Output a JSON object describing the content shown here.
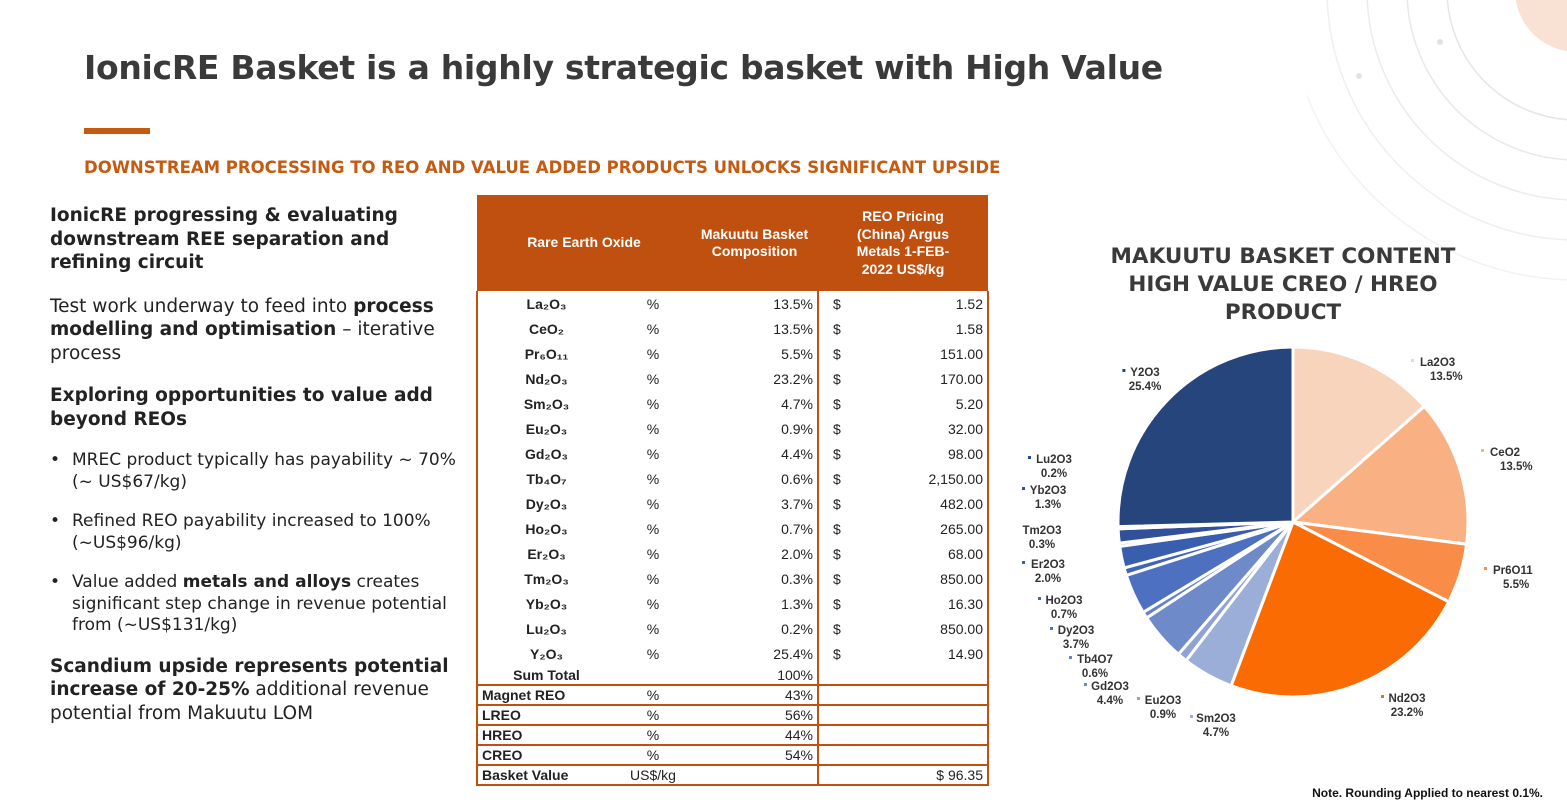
{
  "title": "IonicRE Basket is a highly strategic basket with High Value",
  "subtitle": "DOWNSTREAM PROCESSING TO REO AND VALUE ADDED PRODUCTS UNLOCKS SIGNIFICANT UPSIDE",
  "left": {
    "heading1": "IonicRE progressing & evaluating downstream REE separation and refining circuit",
    "para1_a": "Test work underway to feed into ",
    "para1_b": "process modelling and optimisation",
    "para1_c": " – iterative process",
    "heading2": "Exploring opportunities to value add beyond REOs",
    "bullet1": "MREC product typically has payability ~ 70% (~ US$67/kg)",
    "bullet2": "Refined REO payability increased to 100% (~US$96/kg)",
    "bullet3_a": "Value added ",
    "bullet3_b": "metals and alloys",
    "bullet3_c": " creates significant step change in revenue potential from (~US$131/kg)",
    "para2_a": "Scandium upside represents potential increase of 20-25%",
    "para2_b": " additional revenue potential from Makuutu LOM"
  },
  "table": {
    "headers": {
      "oxide": "Rare Earth Oxide",
      "composition": "Makuutu Basket Composition",
      "pricing": "REO Pricing (China) Argus Metals 1-FEB-2022 US$/kg"
    },
    "rows": [
      {
        "oxide": "La₂O₃",
        "unit": "%",
        "pct": "13.5%",
        "cur": "$",
        "price": "1.52"
      },
      {
        "oxide": "CeO₂",
        "unit": "%",
        "pct": "13.5%",
        "cur": "$",
        "price": "1.58"
      },
      {
        "oxide": "Pr₆O₁₁",
        "unit": "%",
        "pct": "5.5%",
        "cur": "$",
        "price": "151.00"
      },
      {
        "oxide": "Nd₂O₃",
        "unit": "%",
        "pct": "23.2%",
        "cur": "$",
        "price": "170.00"
      },
      {
        "oxide": "Sm₂O₃",
        "unit": "%",
        "pct": "4.7%",
        "cur": "$",
        "price": "5.20"
      },
      {
        "oxide": "Eu₂O₃",
        "unit": "%",
        "pct": "0.9%",
        "cur": "$",
        "price": "32.00"
      },
      {
        "oxide": "Gd₂O₃",
        "unit": "%",
        "pct": "4.4%",
        "cur": "$",
        "price": "98.00"
      },
      {
        "oxide": "Tb₄O₇",
        "unit": "%",
        "pct": "0.6%",
        "cur": "$",
        "price": "2,150.00"
      },
      {
        "oxide": "Dy₂O₃",
        "unit": "%",
        "pct": "3.7%",
        "cur": "$",
        "price": "482.00"
      },
      {
        "oxide": "Ho₂O₃",
        "unit": "%",
        "pct": "0.7%",
        "cur": "$",
        "price": "265.00"
      },
      {
        "oxide": "Er₂O₃",
        "unit": "%",
        "pct": "2.0%",
        "cur": "$",
        "price": "68.00"
      },
      {
        "oxide": "Tm₂O₃",
        "unit": "%",
        "pct": "0.3%",
        "cur": "$",
        "price": "850.00"
      },
      {
        "oxide": "Yb₂O₃",
        "unit": "%",
        "pct": "1.3%",
        "cur": "$",
        "price": "16.30"
      },
      {
        "oxide": "Lu₂O₃",
        "unit": "%",
        "pct": "0.2%",
        "cur": "$",
        "price": "850.00"
      },
      {
        "oxide": "Y₂O₃",
        "unit": "%",
        "pct": "25.4%",
        "cur": "$",
        "price": "14.90"
      }
    ],
    "sum_label": "Sum Total",
    "sum_value": "100%",
    "summary": [
      {
        "label": "Magnet REO",
        "unit": "%",
        "value": "43%"
      },
      {
        "label": "LREO",
        "unit": "%",
        "value": "56%"
      },
      {
        "label": "HREO",
        "unit": "%",
        "value": "44%"
      },
      {
        "label": "CREO",
        "unit": "%",
        "value": "54%"
      }
    ],
    "basket": {
      "label": "Basket Value",
      "unit": "US$/kg",
      "value": "$ 96.35"
    }
  },
  "chart_title": "MAKUUTU BASKET CONTENT HIGH VALUE CREO / HREO PRODUCT",
  "note": "Note. Rounding Applied to nearest 0.1%.",
  "chart_data": {
    "type": "pie",
    "title": "MAKUUTU BASKET CONTENT HIGH VALUE CREO / HREO PRODUCT",
    "slices": [
      {
        "label": "La2O3",
        "value": 13.5,
        "text": "13.5%",
        "color": "#f8d4bd"
      },
      {
        "label": "CeO2",
        "value": 13.5,
        "text": "13.5%",
        "color": "#f9b083"
      },
      {
        "label": "Pr6O11",
        "value": 5.5,
        "text": "5.5%",
        "color": "#f98c46"
      },
      {
        "label": "Nd2O3",
        "value": 23.2,
        "text": "23.2%",
        "color": "#fa6b04"
      },
      {
        "label": "Sm2O3",
        "value": 4.7,
        "text": "4.7%",
        "color": "#9aaed8"
      },
      {
        "label": "Eu2O3",
        "value": 0.9,
        "text": "0.9%",
        "color": "#8ea3d3"
      },
      {
        "label": "Gd2O3",
        "value": 4.4,
        "text": "4.4%",
        "color": "#6f8ac8"
      },
      {
        "label": "Tb4O7",
        "value": 0.6,
        "text": "0.6%",
        "color": "#6482c6"
      },
      {
        "label": "Dy2O3",
        "value": 3.7,
        "text": "3.7%",
        "color": "#4e70c0"
      },
      {
        "label": "Ho2O3",
        "value": 0.7,
        "text": "0.7%",
        "color": "#3f64b8"
      },
      {
        "label": "Er2O3",
        "value": 2.0,
        "text": "2.0%",
        "color": "#3a5eae"
      },
      {
        "label": "Tm2O3",
        "value": 0.3,
        "text": "0.3%",
        "color": "#3559a4"
      },
      {
        "label": "Yb2O3",
        "value": 1.3,
        "text": "1.3%",
        "color": "#30509a"
      },
      {
        "label": "Lu2O3",
        "value": 0.2,
        "text": "0.2%",
        "color": "#2c4a90"
      },
      {
        "label": "Y2O3",
        "value": 25.4,
        "text": "25.4%",
        "color": "#27457d"
      }
    ],
    "label_color": "#000000",
    "legend": "none"
  }
}
